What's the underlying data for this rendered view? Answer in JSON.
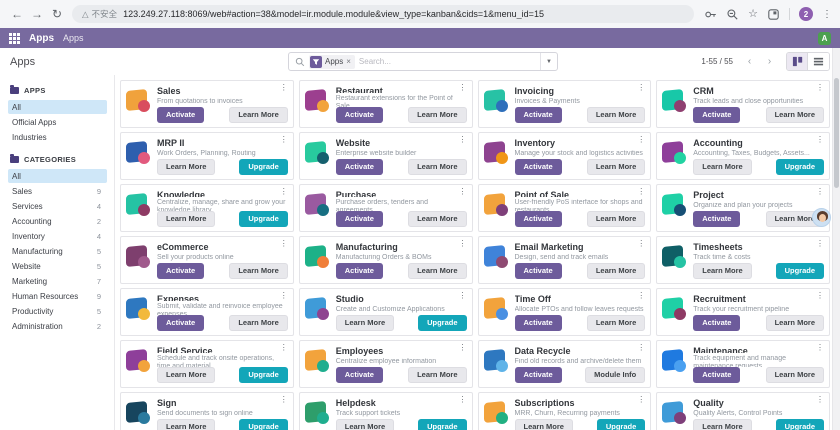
{
  "icons": {
    "back": "←",
    "forward": "→",
    "reload": "↻",
    "warning": "△",
    "star": "☆",
    "menu_dots": "⋮",
    "kebab": "⋮",
    "caret": "▼",
    "prev": "‹",
    "next": "›",
    "close": "×"
  },
  "browser": {
    "security_label": "不安全",
    "url": "123.249.27.118:8069/web#action=38&model=ir.module.module&view_type=kanban&cids=1&menu_id=15",
    "profile_letter": "2"
  },
  "nav": {
    "app_name": "Apps",
    "menu_label": "Apps",
    "user_initial": "A"
  },
  "control_panel": {
    "breadcrumb": "Apps",
    "search": {
      "facet": "Apps",
      "placeholder": "Search..."
    },
    "pager": "1-55 / 55"
  },
  "sidebar": {
    "apps_title": "APPS",
    "apps_items": [
      {
        "label": "All",
        "selected": true
      },
      {
        "label": "Official Apps",
        "selected": false
      },
      {
        "label": "Industries",
        "selected": false
      }
    ],
    "categories_title": "CATEGORIES",
    "category_items": [
      {
        "label": "All",
        "count": "",
        "selected": true
      },
      {
        "label": "Sales",
        "count": "9",
        "selected": false
      },
      {
        "label": "Services",
        "count": "4",
        "selected": false
      },
      {
        "label": "Accounting",
        "count": "2",
        "selected": false
      },
      {
        "label": "Inventory",
        "count": "4",
        "selected": false
      },
      {
        "label": "Manufacturing",
        "count": "5",
        "selected": false
      },
      {
        "label": "Website",
        "count": "5",
        "selected": false
      },
      {
        "label": "Marketing",
        "count": "7",
        "selected": false
      },
      {
        "label": "Human Resources",
        "count": "9",
        "selected": false
      },
      {
        "label": "Productivity",
        "count": "5",
        "selected": false
      },
      {
        "label": "Administration",
        "count": "2",
        "selected": false
      }
    ]
  },
  "apps": [
    {
      "name": "Sales",
      "summary": "From quotations to invoices",
      "icon": [
        "#f0a23c",
        "#d94d5e"
      ],
      "buttons": [
        {
          "label": "Activate",
          "style": "primary"
        },
        {
          "label": "Learn More",
          "style": "secondary"
        }
      ]
    },
    {
      "name": "Restaurant",
      "summary": "Restaurant extensions for the Point of Sale",
      "icon": [
        "#9c3f8f",
        "#f2a33c"
      ],
      "buttons": [
        {
          "label": "Activate",
          "style": "primary"
        },
        {
          "label": "Learn More",
          "style": "secondary"
        }
      ]
    },
    {
      "name": "Invoicing",
      "summary": "Invoices & Payments",
      "icon": [
        "#27c2a5",
        "#2e6fbb"
      ],
      "buttons": [
        {
          "label": "Activate",
          "style": "primary"
        },
        {
          "label": "Learn More",
          "style": "secondary"
        }
      ]
    },
    {
      "name": "CRM",
      "summary": "Track leads and close opportunities",
      "icon": [
        "#18c8a8",
        "#8f3f70"
      ],
      "buttons": [
        {
          "label": "Activate",
          "style": "primary"
        },
        {
          "label": "Learn More",
          "style": "secondary"
        }
      ]
    },
    {
      "name": "MRP II",
      "summary": "Work Orders, Planning, Routing",
      "icon": [
        "#2e5fae",
        "#e25a7e"
      ],
      "buttons": [
        {
          "label": "Learn More",
          "style": "secondary"
        },
        {
          "label": "Upgrade",
          "style": "upgrade"
        }
      ]
    },
    {
      "name": "Website",
      "summary": "Enterprise website builder",
      "icon": [
        "#28ca9e",
        "#15606e"
      ],
      "buttons": [
        {
          "label": "Activate",
          "style": "primary"
        },
        {
          "label": "Learn More",
          "style": "secondary"
        }
      ]
    },
    {
      "name": "Inventory",
      "summary": "Manage your stock and logistics activities",
      "icon": [
        "#8e4390",
        "#f09617"
      ],
      "buttons": [
        {
          "label": "Activate",
          "style": "primary"
        },
        {
          "label": "Learn More",
          "style": "secondary"
        }
      ]
    },
    {
      "name": "Accounting",
      "summary": "Accounting, Taxes, Budgets, Assets...",
      "icon": [
        "#8e3f9a",
        "#22d3a2"
      ],
      "buttons": [
        {
          "label": "Learn More",
          "style": "secondary"
        },
        {
          "label": "Upgrade",
          "style": "upgrade"
        }
      ]
    },
    {
      "name": "Knowledge",
      "summary": "Centralize, manage, share and grow your knowledge library",
      "icon": [
        "#25c3a4",
        "#8e3a64"
      ],
      "buttons": [
        {
          "label": "Learn More",
          "style": "secondary"
        },
        {
          "label": "Upgrade",
          "style": "upgrade"
        }
      ]
    },
    {
      "name": "Purchase",
      "summary": "Purchase orders, tenders and agreements",
      "icon": [
        "#9a5aa0",
        "#176f82"
      ],
      "buttons": [
        {
          "label": "Activate",
          "style": "primary"
        },
        {
          "label": "Learn More",
          "style": "secondary"
        }
      ]
    },
    {
      "name": "Point of Sale",
      "summary": "User-friendly PoS interface for shops and restaurants",
      "icon": [
        "#f2a33c",
        "#7e3f7a"
      ],
      "buttons": [
        {
          "label": "Activate",
          "style": "primary"
        },
        {
          "label": "Learn More",
          "style": "secondary"
        }
      ]
    },
    {
      "name": "Project",
      "summary": "Organize and plan your projects",
      "icon": [
        "#1fd0a6",
        "#174f75"
      ],
      "buttons": [
        {
          "label": "Activate",
          "style": "primary"
        },
        {
          "label": "Learn More",
          "style": "secondary"
        }
      ]
    },
    {
      "name": "eCommerce",
      "summary": "Sell your products online",
      "icon": [
        "#7e3f6e",
        "#a05a8c"
      ],
      "buttons": [
        {
          "label": "Activate",
          "style": "primary"
        },
        {
          "label": "Learn More",
          "style": "secondary"
        }
      ]
    },
    {
      "name": "Manufacturing",
      "summary": "Manufacturing Orders & BOMs",
      "icon": [
        "#1db188",
        "#f07f3a"
      ],
      "buttons": [
        {
          "label": "Activate",
          "style": "primary"
        },
        {
          "label": "Learn More",
          "style": "secondary"
        }
      ]
    },
    {
      "name": "Email Marketing",
      "summary": "Design, send and track emails",
      "icon": [
        "#3f83d9",
        "#8e4a72"
      ],
      "buttons": [
        {
          "label": "Activate",
          "style": "primary"
        },
        {
          "label": "Learn More",
          "style": "secondary"
        }
      ]
    },
    {
      "name": "Timesheets",
      "summary": "Track time & costs",
      "icon": [
        "#0f5f66",
        "#25c3a4"
      ],
      "buttons": [
        {
          "label": "Learn More",
          "style": "secondary"
        },
        {
          "label": "Upgrade",
          "style": "upgrade"
        }
      ]
    },
    {
      "name": "Expenses",
      "summary": "Submit, validate and reinvoice employee expenses",
      "icon": [
        "#2e78c0",
        "#f2b93c"
      ],
      "buttons": [
        {
          "label": "Activate",
          "style": "primary"
        },
        {
          "label": "Learn More",
          "style": "secondary"
        }
      ]
    },
    {
      "name": "Studio",
      "summary": "Create and Customize Applications",
      "icon": [
        "#3f9bd8",
        "#8e4390"
      ],
      "buttons": [
        {
          "label": "Learn More",
          "style": "secondary"
        },
        {
          "label": "Upgrade",
          "style": "upgrade"
        }
      ]
    },
    {
      "name": "Time Off",
      "summary": "Allocate PTOs and follow leaves requests",
      "icon": [
        "#f2a33c",
        "#4a90e2"
      ],
      "buttons": [
        {
          "label": "Activate",
          "style": "primary"
        },
        {
          "label": "Learn More",
          "style": "secondary"
        }
      ]
    },
    {
      "name": "Recruitment",
      "summary": "Track your recruitment pipeline",
      "icon": [
        "#1fd0a6",
        "#8e3a64"
      ],
      "buttons": [
        {
          "label": "Activate",
          "style": "primary"
        },
        {
          "label": "Learn More",
          "style": "secondary"
        }
      ]
    },
    {
      "name": "Field Service",
      "summary": "Schedule and track onsite operations, time and material",
      "icon": [
        "#8e3f9a",
        "#f2a33c"
      ],
      "buttons": [
        {
          "label": "Learn More",
          "style": "secondary"
        },
        {
          "label": "Upgrade",
          "style": "upgrade"
        }
      ]
    },
    {
      "name": "Employees",
      "summary": "Centralize employee information",
      "icon": [
        "#f2a33c",
        "#1fae8f"
      ],
      "buttons": [
        {
          "label": "Activate",
          "style": "primary"
        },
        {
          "label": "Learn More",
          "style": "secondary"
        }
      ]
    },
    {
      "name": "Data Recycle",
      "summary": "Find old records and archive/delete them",
      "icon": [
        "#2e78c0",
        "#5fb3e8"
      ],
      "buttons": [
        {
          "label": "Activate",
          "style": "primary"
        },
        {
          "label": "Module Info",
          "style": "secondary"
        }
      ]
    },
    {
      "name": "Maintenance",
      "summary": "Track equipment and manage maintenance requests",
      "icon": [
        "#1f7ae0",
        "#4aa0f0"
      ],
      "buttons": [
        {
          "label": "Activate",
          "style": "primary"
        },
        {
          "label": "Learn More",
          "style": "secondary"
        }
      ]
    },
    {
      "name": "Sign",
      "summary": "Send documents to sign online",
      "icon": [
        "#17455e",
        "#2a7a9e"
      ],
      "buttons": [
        {
          "label": "Learn More",
          "style": "secondary"
        },
        {
          "label": "Upgrade",
          "style": "upgrade"
        }
      ]
    },
    {
      "name": "Helpdesk",
      "summary": "Track support tickets",
      "icon": [
        "#2e9e6b",
        "#1fae8f"
      ],
      "buttons": [
        {
          "label": "Learn More",
          "style": "secondary"
        },
        {
          "label": "Upgrade",
          "style": "upgrade"
        }
      ]
    },
    {
      "name": "Subscriptions",
      "summary": "MRR, Churn, Recurring payments",
      "icon": [
        "#f2a33c",
        "#21b082"
      ],
      "buttons": [
        {
          "label": "Learn More",
          "style": "secondary"
        },
        {
          "label": "Upgrade",
          "style": "upgrade"
        }
      ]
    },
    {
      "name": "Quality",
      "summary": "Quality Alerts, Control Points",
      "icon": [
        "#3f9bd8",
        "#7e3f7a"
      ],
      "buttons": [
        {
          "label": "Learn More",
          "style": "secondary"
        },
        {
          "label": "Upgrade",
          "style": "upgrade"
        }
      ]
    }
  ]
}
